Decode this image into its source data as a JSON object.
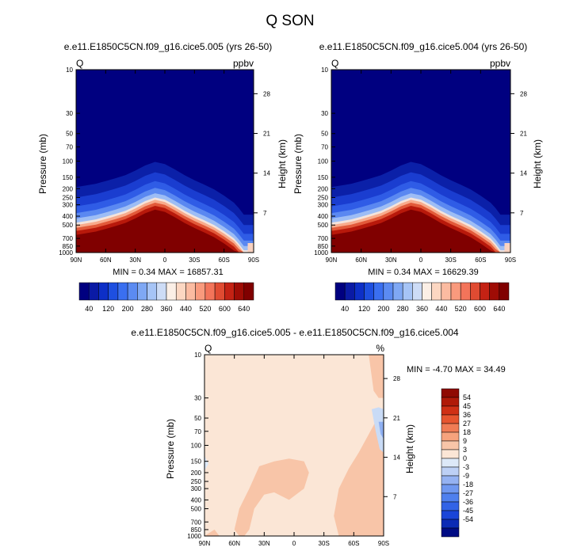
{
  "page_title": "Q SON",
  "colors": {
    "seq_scale": [
      "#000080",
      "#0a1aa5",
      "#0d2fc7",
      "#1e4fe0",
      "#3a6ff0",
      "#5b8bf2",
      "#7fa8f4",
      "#a6c4f6",
      "#cddcf6",
      "#fbefe6",
      "#fcd7c2",
      "#fbbba1",
      "#f99a7d",
      "#f3745a",
      "#e04b32",
      "#c42214",
      "#9f0c05",
      "#800000"
    ],
    "diff_scale": [
      "#000c84",
      "#0b2bb5",
      "#1a45d8",
      "#3263e6",
      "#4f80ee",
      "#7098f0",
      "#95b2f2",
      "#bdd0f5",
      "#dde9f8",
      "#fbe6d6",
      "#f8c5a8",
      "#f6a37d",
      "#f07c55",
      "#e6552f",
      "#cf3015",
      "#b01a08",
      "#8f0a02"
    ]
  },
  "chart_data": [
    {
      "type": "heatmap",
      "id": "panel-a",
      "title": "e.e11.E1850C5CN.f09_g16.cice5.005 (yrs 26-50)",
      "corner_left": "Q",
      "corner_right": "ppbv",
      "ylabel": "Pressure (mb)",
      "ylabel_right": "Height (km)",
      "x_ticks": [
        "90N",
        "60N",
        "30N",
        "0",
        "30S",
        "60S",
        "90S"
      ],
      "y_ticks": [
        "10",
        "30",
        "50",
        "70",
        "100",
        "150",
        "200",
        "250",
        "300",
        "400",
        "500",
        "700",
        "850",
        "1000"
      ],
      "height_ticks": [
        "28",
        "21",
        "14",
        "7"
      ],
      "log_pressure": true,
      "ylim": [
        1000,
        10
      ],
      "xlim": [
        "90N",
        "90S"
      ],
      "stats": "MIN =  0.34  MAX = 16857.31",
      "tropopause_profile": {
        "lat": [
          90,
          80,
          70,
          60,
          50,
          40,
          30,
          20,
          10,
          0,
          -10,
          -20,
          -30,
          -40,
          -50,
          -60,
          -70,
          -75,
          -80,
          -85,
          -90
        ],
        "pressure": [
          500,
          480,
          460,
          430,
          400,
          370,
          330,
          290,
          265,
          280,
          320,
          370,
          420,
          470,
          530,
          620,
          740,
          850,
          1000,
          1000,
          1000
        ]
      },
      "colorbar_labels": [
        "40",
        "120",
        "200",
        "280",
        "360",
        "440",
        "520",
        "600",
        "640"
      ]
    },
    {
      "type": "heatmap",
      "id": "panel-b",
      "title": "e.e11.E1850C5CN.f09_g16.cice5.004 (yrs 26-50)",
      "corner_left": "Q",
      "corner_right": "ppbv",
      "ylabel": "Pressure (mb)",
      "ylabel_right": "Height (km)",
      "x_ticks": [
        "90N",
        "60N",
        "30N",
        "0",
        "30S",
        "60S",
        "90S"
      ],
      "y_ticks": [
        "10",
        "30",
        "50",
        "70",
        "100",
        "150",
        "200",
        "250",
        "300",
        "400",
        "500",
        "700",
        "850",
        "1000"
      ],
      "height_ticks": [
        "28",
        "21",
        "14",
        "7"
      ],
      "log_pressure": true,
      "ylim": [
        1000,
        10
      ],
      "xlim": [
        "90N",
        "90S"
      ],
      "stats": "MIN =  0.34  MAX = 16629.39",
      "tropopause_profile": {
        "lat": [
          90,
          80,
          70,
          60,
          50,
          40,
          30,
          20,
          10,
          0,
          -10,
          -20,
          -30,
          -40,
          -50,
          -60,
          -70,
          -75,
          -80,
          -85,
          -90
        ],
        "pressure": [
          500,
          480,
          460,
          430,
          400,
          370,
          330,
          290,
          265,
          280,
          320,
          370,
          420,
          470,
          530,
          620,
          740,
          850,
          1000,
          1000,
          1000
        ]
      },
      "colorbar_labels": [
        "40",
        "120",
        "200",
        "280",
        "360",
        "440",
        "520",
        "600",
        "640"
      ]
    },
    {
      "type": "heatmap",
      "id": "panel-diff",
      "title": "e.e11.E1850C5CN.f09_g16.cice5.005 - e.e11.E1850C5CN.f09_g16.cice5.004",
      "corner_left": "Q",
      "corner_right": "%",
      "ylabel": "Pressure (mb)",
      "ylabel_right": "Height (km)",
      "x_ticks": [
        "90N",
        "60N",
        "30N",
        "0",
        "30S",
        "60S",
        "90S"
      ],
      "y_ticks": [
        "10",
        "30",
        "50",
        "70",
        "100",
        "150",
        "200",
        "250",
        "300",
        "400",
        "500",
        "700",
        "850",
        "1000"
      ],
      "height_ticks": [
        "28",
        "21",
        "14",
        "7"
      ],
      "log_pressure": true,
      "ylim": [
        1000,
        10
      ],
      "xlim": [
        "90N",
        "90S"
      ],
      "stats": "MIN = -4.70  MAX = 34.49",
      "colorbar_labels": [
        "54",
        "45",
        "36",
        "27",
        "18",
        "9",
        "3",
        "0",
        "-3",
        "-9",
        "-18",
        "-27",
        "-36",
        "-45",
        "-54"
      ]
    }
  ]
}
